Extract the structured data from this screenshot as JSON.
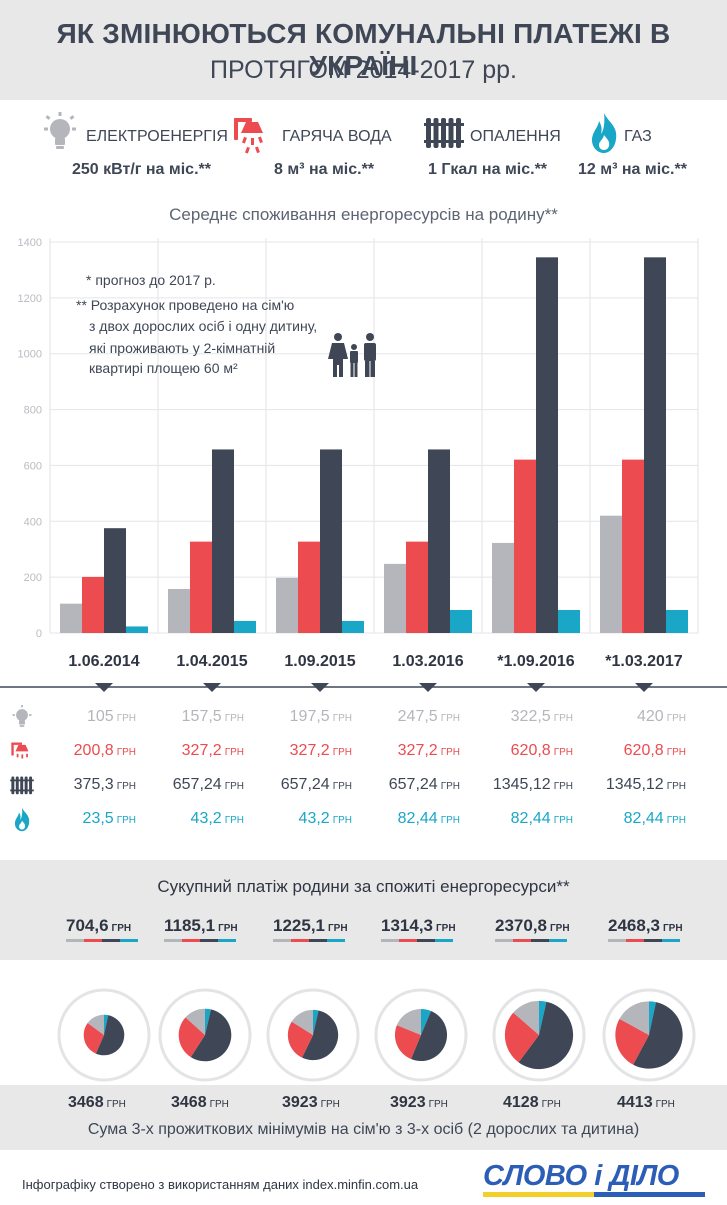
{
  "header": {
    "title": "ЯК ЗМІНЮЮТЬСЯ КОМУНАЛЬНІ ПЛАТЕЖІ В УКРАЇНІ",
    "subtitle": "ПРОТЯГОМ 2014-2017 рр."
  },
  "resources": [
    {
      "name": "ЕЛЕКТРОЕНЕРГІЯ",
      "amount": "250 кВт/г на міс.**",
      "icon": "lightbulb-icon",
      "color": "#b4b6bb"
    },
    {
      "name": "ГАРЯЧА ВОДА",
      "amount": "8 м³ на міс.**",
      "icon": "shower-icon",
      "color": "#ec4b4f"
    },
    {
      "name": "ОПАЛЕННЯ",
      "amount": "1 Гкал на міс.**",
      "icon": "radiator-icon",
      "color": "#3f4756"
    },
    {
      "name": "ГАЗ",
      "amount": "12 м³ на міс.**",
      "icon": "flame-icon",
      "color": "#19a6c7"
    }
  ],
  "notes": {
    "forecast": "* прогноз до 2017 р.",
    "calc_lines": [
      "** Розрахунок проведено на сім'ю",
      "з двох дорослих осіб і одну дитину,",
      "які проживають у 2-кімнатній",
      "квартирі площею 60 м²"
    ],
    "family_icon": "family-icon"
  },
  "units": {
    "uah": "ГРН"
  },
  "chart_data": {
    "type": "bar",
    "title": "Середнє споживання енергоресурсів на родину**",
    "categories": [
      "1.06.2014",
      "1.04.2015",
      "1.09.2015",
      "1.03.2016",
      "*1.09.2016",
      "*1.03.2017"
    ],
    "ylim": [
      0,
      1400
    ],
    "yticks": [
      0,
      200,
      400,
      600,
      800,
      1000,
      1200,
      1400
    ],
    "grid": true,
    "series": [
      {
        "name": "ЕЛЕКТРОЕНЕРГІЯ",
        "color": "#b4b6bb",
        "values": [
          105,
          157.5,
          197.5,
          247.5,
          322.5,
          420
        ],
        "labels": [
          "105",
          "157,5",
          "197,5",
          "247,5",
          "322,5",
          "420"
        ]
      },
      {
        "name": "ГАРЯЧА ВОДА",
        "color": "#ec4b4f",
        "values": [
          200.8,
          327.2,
          327.2,
          327.2,
          620.8,
          620.8
        ],
        "labels": [
          "200,8",
          "327,2",
          "327,2",
          "327,2",
          "620,8",
          "620,8"
        ]
      },
      {
        "name": "ОПАЛЕННЯ",
        "color": "#3f4756",
        "values": [
          375.3,
          657.24,
          657.24,
          657.24,
          1345.12,
          1345.12
        ],
        "labels": [
          "375,3",
          "657,24",
          "657,24",
          "657,24",
          "1345,12",
          "1345,12"
        ]
      },
      {
        "name": "ГАЗ",
        "color": "#19a6c7",
        "values": [
          23.5,
          43.2,
          43.2,
          82.44,
          82.44,
          82.44
        ],
        "labels": [
          "23,5",
          "43,2",
          "43,2",
          "82,44",
          "82,44",
          "82,44"
        ]
      }
    ]
  },
  "totals": {
    "title": "Сукупний платіж родини за спожиті енергоресурси**",
    "values": [
      "704,6",
      "1185,1",
      "1225,1",
      "1314,3",
      "2370,8",
      "2468,3"
    ]
  },
  "minimums": {
    "values": [
      3468,
      3468,
      3923,
      3923,
      4128,
      4413
    ],
    "labels": [
      "3468",
      "3468",
      "3923",
      "3923",
      "4128",
      "4413"
    ],
    "caption": "Сума 3-х прожиткових мінімумів на сім'ю з 3-х осіб (2 дорослих та дитина)"
  },
  "footer": {
    "source": "Інфографіку створено з використанням даних index.minfin.com.ua",
    "logo": "СЛОВО і ДІЛО"
  }
}
